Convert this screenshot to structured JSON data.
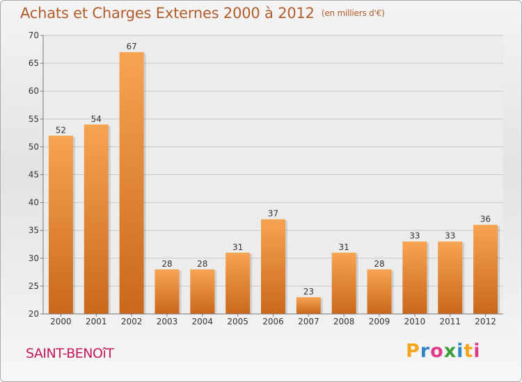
{
  "header": {
    "title": "Achats et Charges Externes 2000 à 2012",
    "unit": "(en milliers d'€)"
  },
  "footer": {
    "place": "SAINT-BENOîT",
    "brand": [
      "P",
      "r",
      "o",
      "x",
      "i",
      "t",
      "i"
    ]
  },
  "colors": {
    "bar_top": "#f7a452",
    "bar_bottom": "#c9681c",
    "title": "#b05c2b",
    "place": "#c2185b",
    "brand": [
      "#f4a51c",
      "#2f86c9",
      "#e03a8a",
      "#3a9c3a",
      "#2f86c9",
      "#f4a51c",
      "#e03a8a"
    ]
  },
  "chart_data": {
    "type": "bar",
    "title": "Achats et Charges Externes 2000 à 2012",
    "categories": [
      "2000",
      "2001",
      "2002",
      "2003",
      "2004",
      "2005",
      "2006",
      "2007",
      "2008",
      "2009",
      "2010",
      "2011",
      "2012"
    ],
    "values": [
      52,
      54,
      67,
      28,
      28,
      31,
      37,
      23,
      31,
      28,
      33,
      33,
      36
    ],
    "ylim": [
      20,
      70
    ],
    "yticks": [
      20,
      25,
      30,
      35,
      40,
      45,
      50,
      55,
      60,
      65,
      70
    ],
    "grid": true,
    "xlabel": "",
    "ylabel": ""
  }
}
